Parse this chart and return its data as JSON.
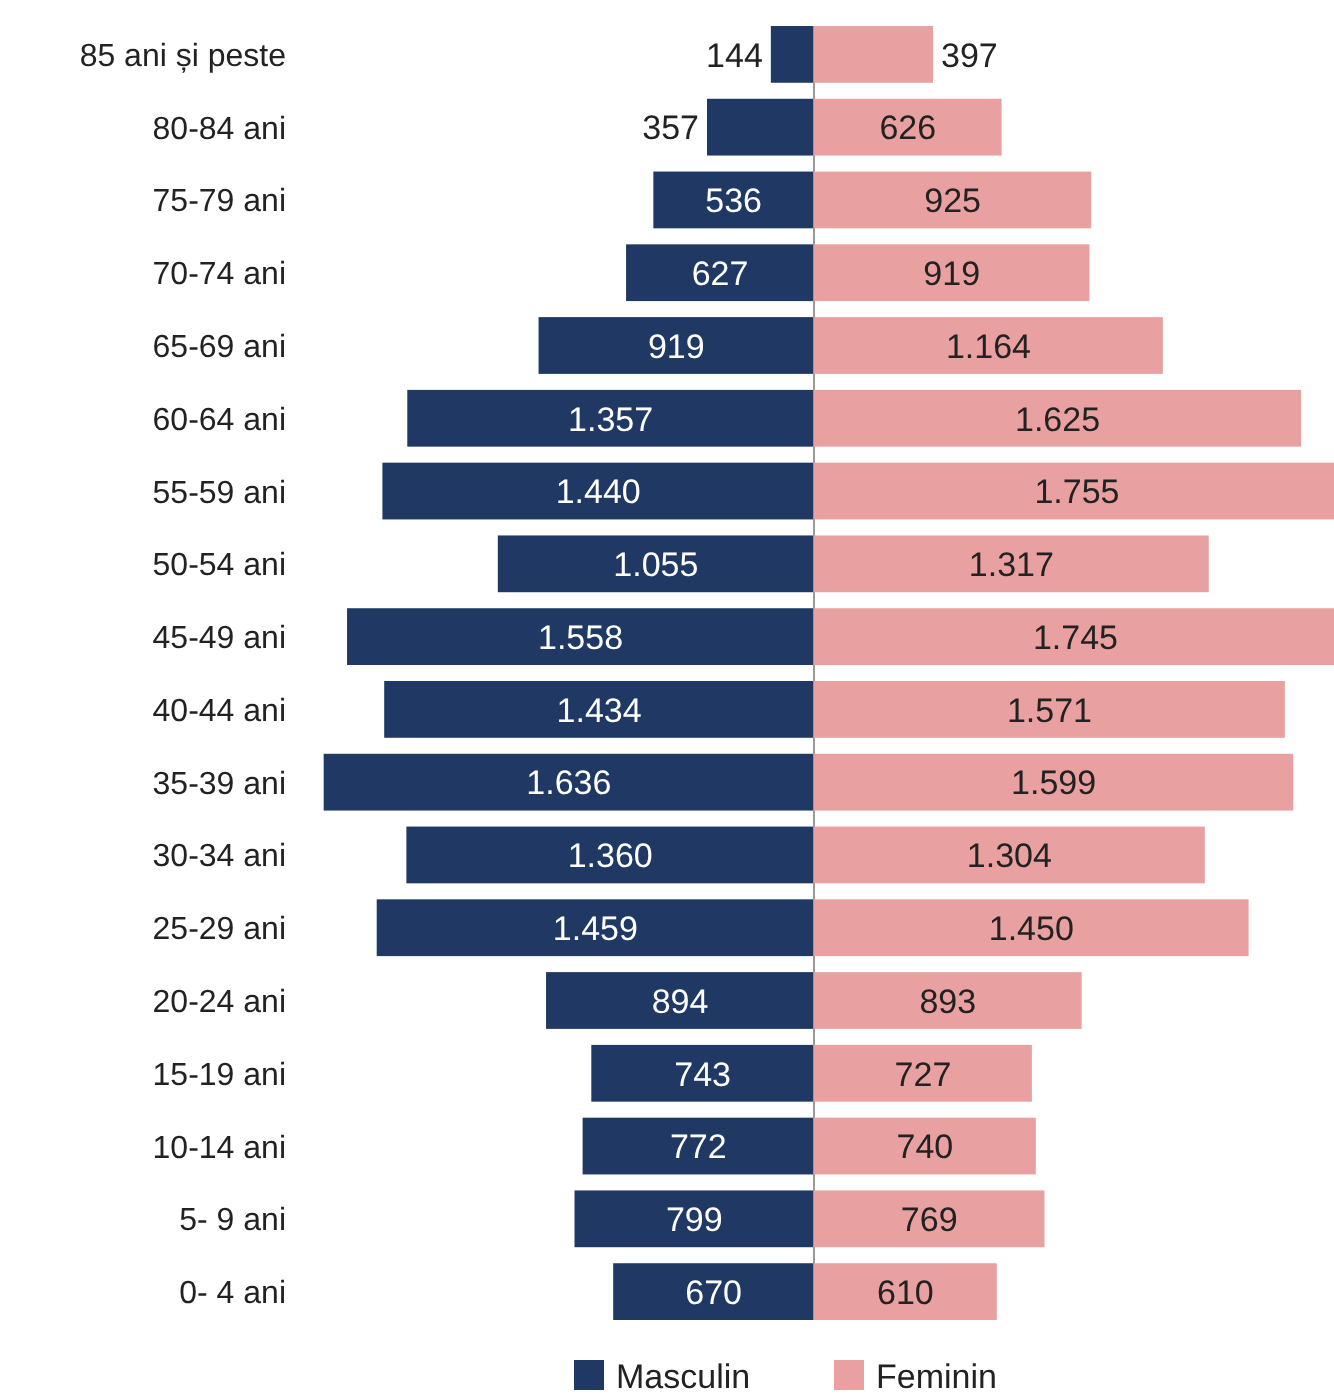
{
  "chart_data": [
    {
      "type": "bar",
      "orientation": "horizontal",
      "categories": [
        "85 ani și peste",
        "80-84 ani",
        "75-79 ani",
        "70-74 ani",
        "65-69 ani",
        "60-64 ani",
        "55-59 ani",
        "50-54 ani",
        "45-49 ani",
        "40-44 ani",
        "35-39 ani",
        "30-34 ani",
        "25-29 ani",
        "20-24 ani",
        "15-19 ani",
        "10-14 ani",
        "5- 9 ani",
        "0- 4 ani"
      ],
      "series": [
        {
          "name": "Masculin",
          "color": "#1f3864",
          "values": [
            144,
            357,
            536,
            627,
            919,
            1357,
            1440,
            1055,
            1558,
            1434,
            1636,
            1360,
            1459,
            894,
            743,
            772,
            799,
            670
          ],
          "value_labels": [
            "144",
            "357",
            "536",
            "627",
            "919",
            "1.357",
            "1.440",
            "1.055",
            "1.558",
            "1.434",
            "1.636",
            "1.360",
            "1.459",
            "894",
            "743",
            "772",
            "799",
            "670"
          ]
        }
      ],
      "legend": "bottom"
    },
    {
      "type": "bar",
      "orientation": "horizontal",
      "categories": [
        null,
        null,
        null,
        null,
        null,
        null,
        null,
        null,
        null,
        null,
        null,
        null,
        null,
        null,
        null,
        null,
        null,
        null
      ],
      "series": [
        {
          "name": "Feminin",
          "color": "#e8a0a0",
          "values": [
            397,
            626,
            925,
            919,
            1164,
            1625,
            1755,
            1317,
            1745,
            1571,
            1599,
            1304,
            1450,
            893,
            727,
            740,
            769,
            610
          ],
          "value_labels": [
            "397",
            "626",
            "925",
            "919",
            "1.164",
            "1.625",
            "1.755",
            "1.317",
            "1.745",
            "1.571",
            "1.599",
            "1.304",
            "1.450",
            "893",
            "727",
            "740",
            "769",
            "610"
          ]
        }
      ],
      "legend": "bottom"
    }
  ]
}
